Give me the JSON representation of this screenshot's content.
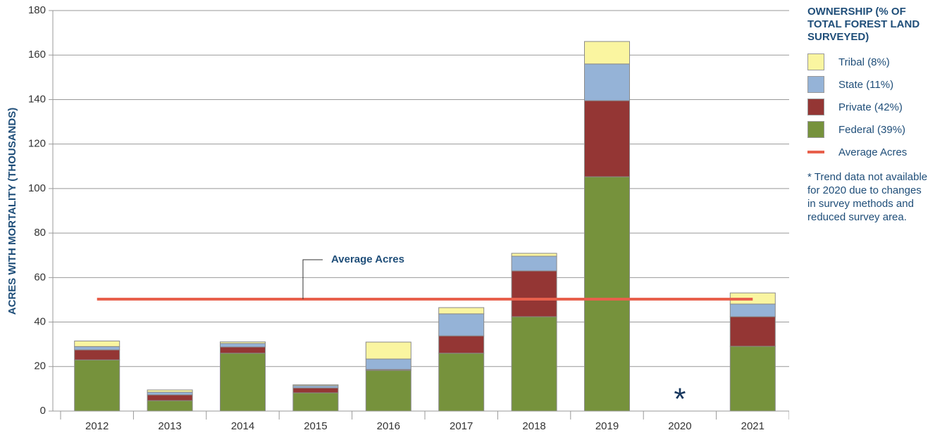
{
  "chart_data": {
    "type": "bar",
    "stacked": true,
    "y_label": "ACRES WITH MORTALITY (THOUSANDS)",
    "categories": [
      "2012",
      "2013",
      "2014",
      "2015",
      "2016",
      "2017",
      "2018",
      "2019",
      "2020",
      "2021"
    ],
    "series": [
      {
        "name": "Tribal (8%)",
        "color": "#faf5a0",
        "values": [
          2.5,
          1,
          0.7,
          0.4,
          7.6,
          2.8,
          1.3,
          10.1,
          null,
          5
        ]
      },
      {
        "name": "State (11%)",
        "color": "#95b3d7",
        "values": [
          1.5,
          1.2,
          1.6,
          1,
          4.7,
          9.9,
          6.6,
          16.5,
          null,
          5.7
        ]
      },
      {
        "name": "Private (42%)",
        "color": "#943634",
        "values": [
          4.5,
          2.6,
          2.8,
          2.2,
          0.4,
          7.8,
          20.6,
          34.2,
          null,
          13.3
        ]
      },
      {
        "name": "Federal (39%)",
        "color": "#76923c",
        "values": [
          23,
          4.7,
          26,
          8.2,
          18.3,
          26,
          42.4,
          105.3,
          null,
          29.1
        ]
      }
    ],
    "average": {
      "name": "Average Acres",
      "value": 50.3,
      "color": "#e8604c"
    },
    "average_label": "Average Acres",
    "missing_marker": "*",
    "legend_title": "OWNERSHIP (% OF TOTAL FOREST LAND SURVEYED)",
    "note": "* Trend data not available for 2020 due to changes in survey methods and reduced survey area.",
    "ylim": [
      0,
      180
    ],
    "yticks": [
      0,
      20,
      40,
      60,
      80,
      100,
      120,
      140,
      160,
      180
    ],
    "grid": true
  }
}
